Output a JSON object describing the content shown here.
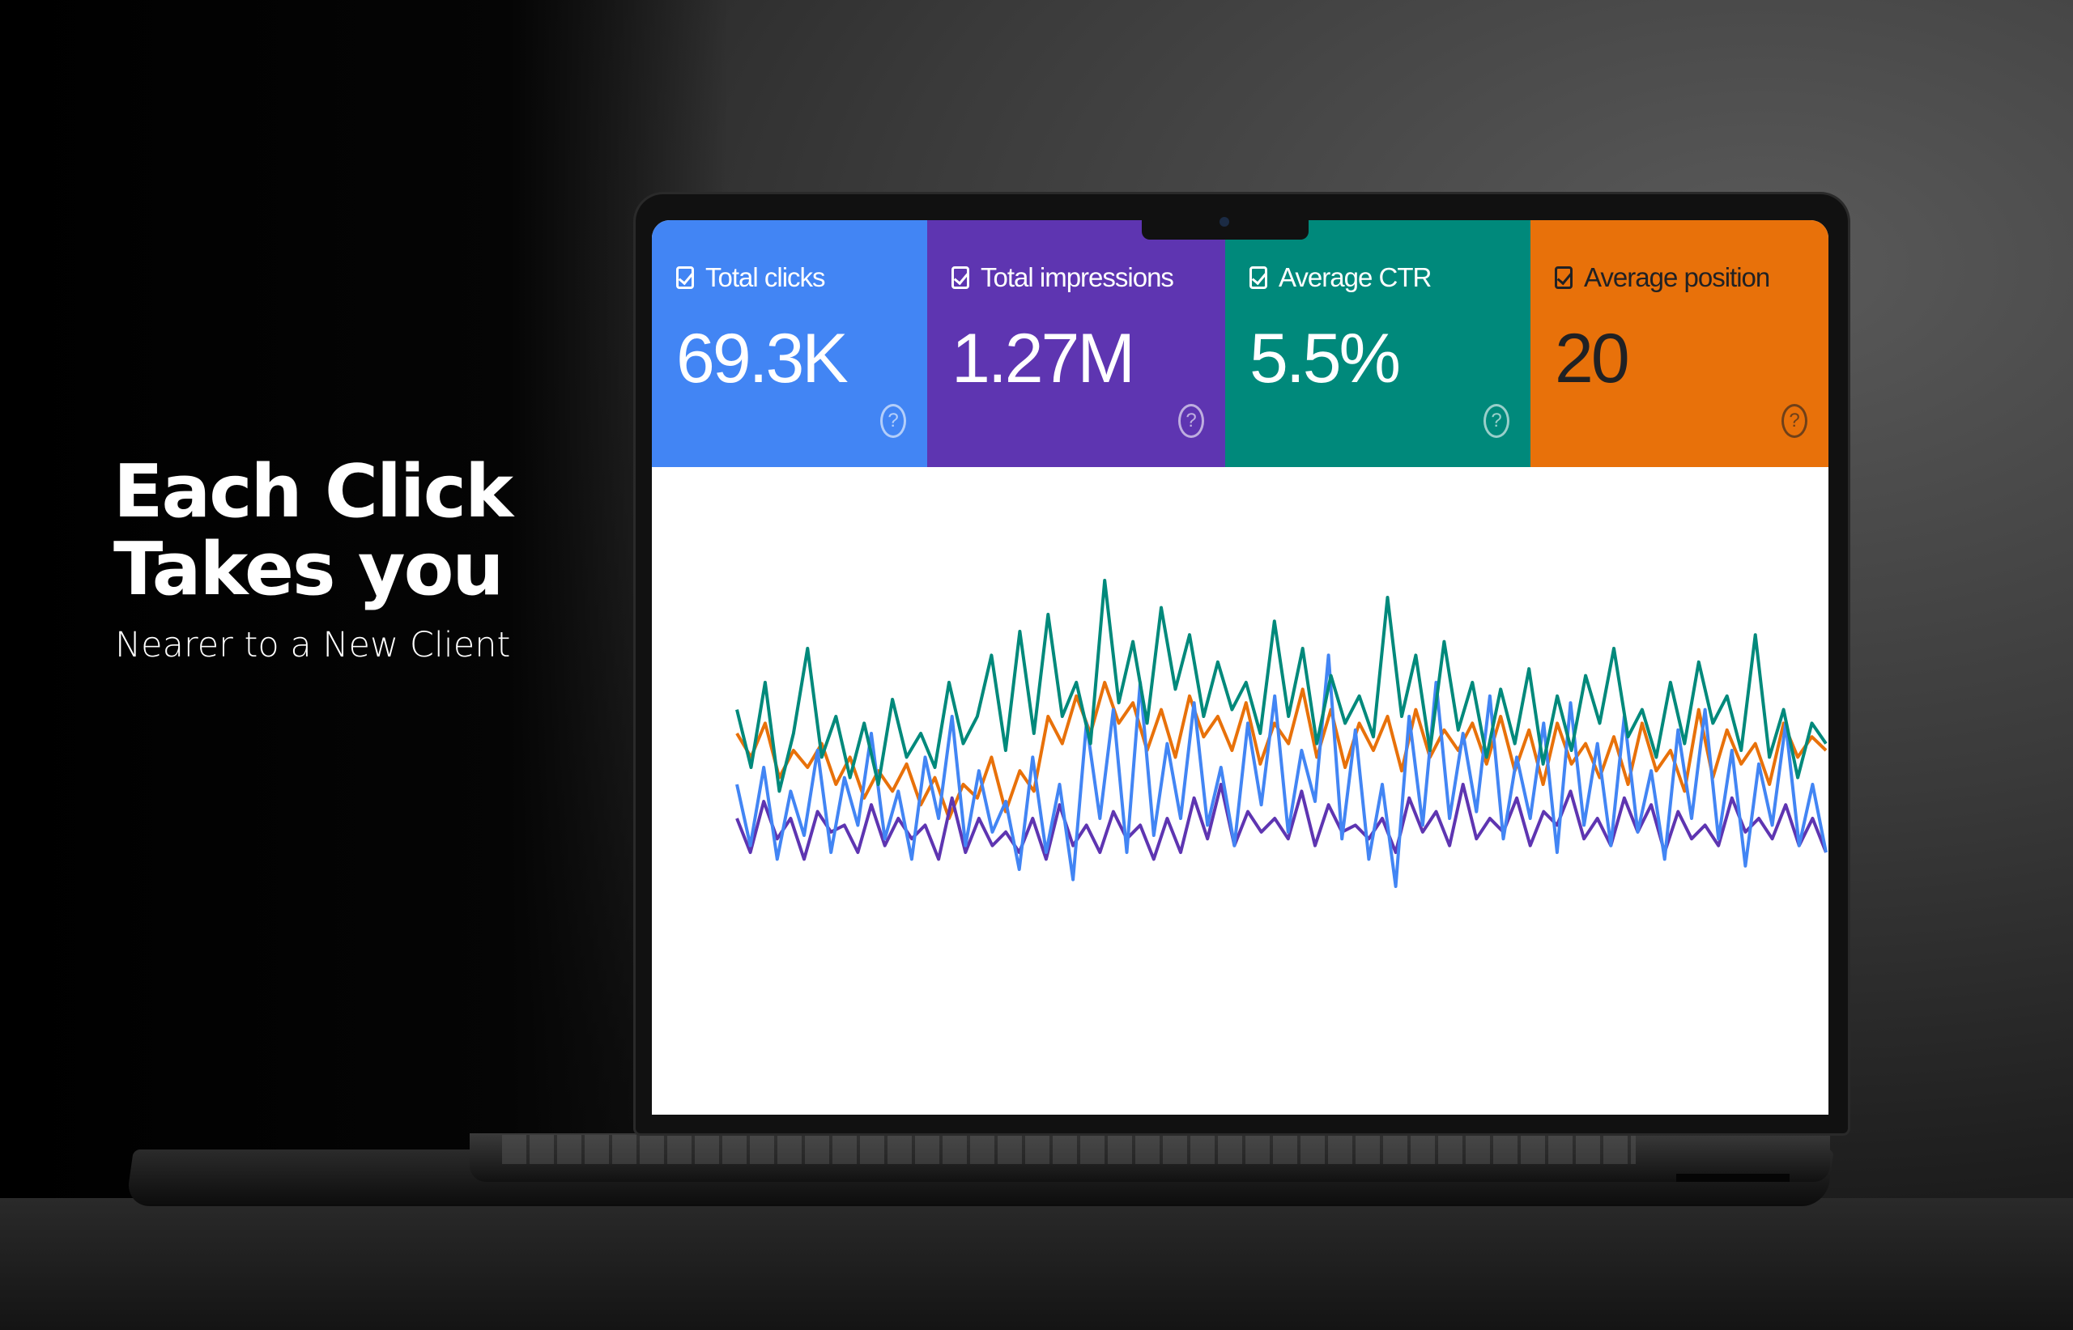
{
  "headline": {
    "line1": "Each Click",
    "line2": "Takes you",
    "subtitle": "Nearer to a New Client"
  },
  "metrics": [
    {
      "label": "Total clicks",
      "value": "69.3K",
      "color": "#4285F4",
      "text_color": "#ffffff",
      "checked": true,
      "icon": "help-circle-icon"
    },
    {
      "label": "Total impressions",
      "value": "1.27M",
      "color": "#5E35B1",
      "text_color": "#ffffff",
      "checked": true,
      "icon": "help-circle-icon"
    },
    {
      "label": "Average CTR",
      "value": "5.5%",
      "color": "#00897B",
      "text_color": "#ffffff",
      "checked": true,
      "icon": "help-circle-icon"
    },
    {
      "label": "Average position",
      "value": "20",
      "color": "#E8710A",
      "text_color": "#202124",
      "checked": true,
      "icon": "help-circle-icon"
    }
  ],
  "chart_data": {
    "type": "line",
    "grid": false,
    "series_colors": [
      "#4285F4",
      "#5E35B1",
      "#00897B",
      "#E8710A"
    ],
    "series": [
      {
        "values": [
          40,
          22,
          45,
          18,
          38,
          25,
          50,
          20,
          42,
          28,
          55,
          24,
          38,
          18,
          48,
          30,
          60,
          22,
          44,
          26,
          35,
          15,
          48,
          20,
          40,
          12,
          58,
          30,
          62,
          20,
          70,
          25,
          52,
          30,
          64,
          28,
          45,
          22,
          58,
          34,
          66,
          26,
          50,
          35,
          78,
          24,
          56,
          18,
          40,
          10,
          60,
          28,
          70,
          30,
          55,
          32,
          66,
          24,
          48,
          30,
          58,
          20,
          64,
          28,
          52,
          22,
          60,
          26,
          44,
          18,
          56,
          30,
          62,
          24,
          50,
          16,
          46,
          28,
          58,
          22,
          40,
          20
        ]
      },
      {
        "values": [
          30,
          20,
          35,
          24,
          30,
          18,
          32,
          26,
          28,
          20,
          34,
          22,
          30,
          24,
          28,
          18,
          36,
          20,
          30,
          22,
          26,
          20,
          30,
          18,
          34,
          22,
          28,
          20,
          32,
          24,
          28,
          18,
          30,
          20,
          36,
          24,
          40,
          22,
          32,
          26,
          30,
          24,
          38,
          22,
          34,
          26,
          28,
          24,
          30,
          20,
          36,
          26,
          32,
          22,
          40,
          24,
          30,
          26,
          36,
          22,
          32,
          28,
          38,
          24,
          30,
          22,
          36,
          26,
          34,
          20,
          32,
          24,
          28,
          22,
          36,
          26,
          30,
          24,
          34,
          22,
          30,
          20
        ]
      },
      {
        "values": [
          62,
          45,
          70,
          38,
          55,
          80,
          48,
          60,
          42,
          58,
          40,
          65,
          48,
          55,
          45,
          70,
          52,
          60,
          78,
          50,
          85,
          55,
          90,
          60,
          70,
          52,
          100,
          64,
          82,
          58,
          92,
          68,
          84,
          60,
          76,
          62,
          70,
          55,
          88,
          60,
          80,
          52,
          72,
          58,
          66,
          54,
          95,
          60,
          78,
          50,
          82,
          56,
          70,
          48,
          68,
          52,
          74,
          46,
          66,
          50,
          72,
          58,
          80,
          54,
          62,
          48,
          70,
          52,
          76,
          58,
          66,
          50,
          84,
          48,
          62,
          42,
          58,
          52
        ]
      },
      {
        "values": [
          55,
          48,
          58,
          42,
          50,
          45,
          52,
          40,
          48,
          36,
          44,
          38,
          46,
          34,
          42,
          30,
          40,
          36,
          48,
          32,
          44,
          38,
          60,
          52,
          66,
          55,
          70,
          58,
          64,
          50,
          62,
          48,
          66,
          54,
          60,
          50,
          64,
          46,
          58,
          52,
          68,
          48,
          62,
          45,
          58,
          50,
          60,
          44,
          62,
          48,
          56,
          50,
          58,
          46,
          60,
          44,
          56,
          40,
          58,
          46,
          52,
          42,
          54,
          40,
          58,
          44,
          50,
          38,
          62,
          42,
          56,
          46,
          52,
          40,
          58,
          48,
          54,
          50
        ]
      }
    ]
  }
}
